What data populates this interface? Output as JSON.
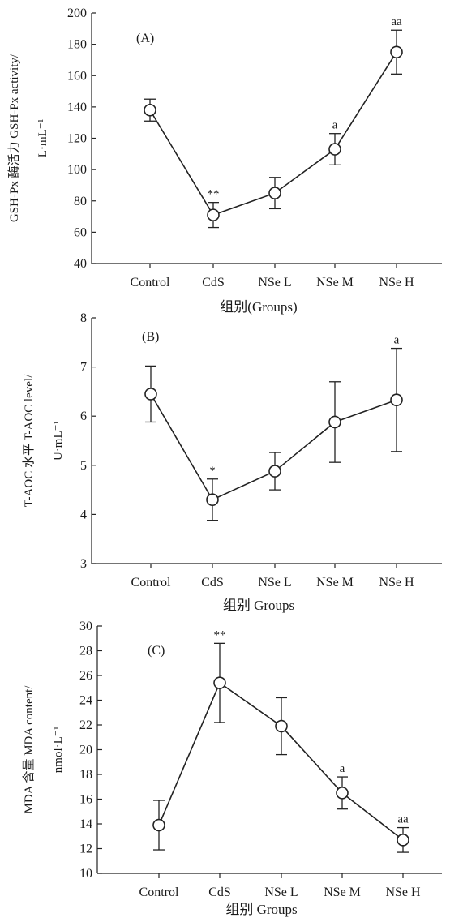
{
  "chart_data": [
    {
      "type": "line",
      "panel_label": "(A)",
      "categories": [
        "Control",
        "CdS",
        "NSe L",
        "NSe M",
        "NSe H"
      ],
      "values": [
        138,
        71,
        85,
        113,
        175
      ],
      "error": [
        7,
        8,
        10,
        10,
        14
      ],
      "significance": [
        "",
        "**",
        "",
        "a",
        "aa"
      ],
      "ylim": [
        40,
        200
      ],
      "yticks": [
        40,
        60,
        80,
        100,
        120,
        140,
        160,
        180,
        200
      ],
      "ylabel_line1": "GSH-Px 酶活力 GSH-Px activity/",
      "ylabel_line2": "L·mL⁻¹",
      "xlabel": "组别(Groups)"
    },
    {
      "type": "line",
      "panel_label": "(B)",
      "categories": [
        "Control",
        "CdS",
        "NSe L",
        "NSe M",
        "NSe H"
      ],
      "values": [
        6.45,
        4.3,
        4.88,
        5.88,
        6.33
      ],
      "error": [
        0.57,
        0.42,
        0.38,
        0.82,
        1.05
      ],
      "significance": [
        "",
        "*",
        "",
        "",
        "a"
      ],
      "ylim": [
        3,
        8
      ],
      "yticks": [
        3,
        4,
        5,
        6,
        7,
        8
      ],
      "ylabel_line1": "T-AOC 水平 T-AOC level/",
      "ylabel_line2": "U·mL⁻¹",
      "xlabel": "组别 Groups"
    },
    {
      "type": "line",
      "panel_label": "(C)",
      "categories": [
        "Control",
        "CdS",
        "NSe L",
        "NSe M",
        "NSe H"
      ],
      "values": [
        13.9,
        25.4,
        21.9,
        16.5,
        12.7
      ],
      "error": [
        2.0,
        3.2,
        2.3,
        1.3,
        1.0
      ],
      "significance": [
        "",
        "**",
        "",
        "a",
        "aa"
      ],
      "ylim": [
        10,
        30
      ],
      "yticks": [
        10,
        12,
        14,
        16,
        18,
        20,
        22,
        24,
        26,
        28,
        30
      ],
      "ylabel_line1": "MDA 含量 MDA content/",
      "ylabel_line2": "nmol·L⁻¹",
      "xlabel": "组别 Groups"
    }
  ],
  "colors": {
    "line": "#222222",
    "marker_fill": "#ffffff"
  }
}
